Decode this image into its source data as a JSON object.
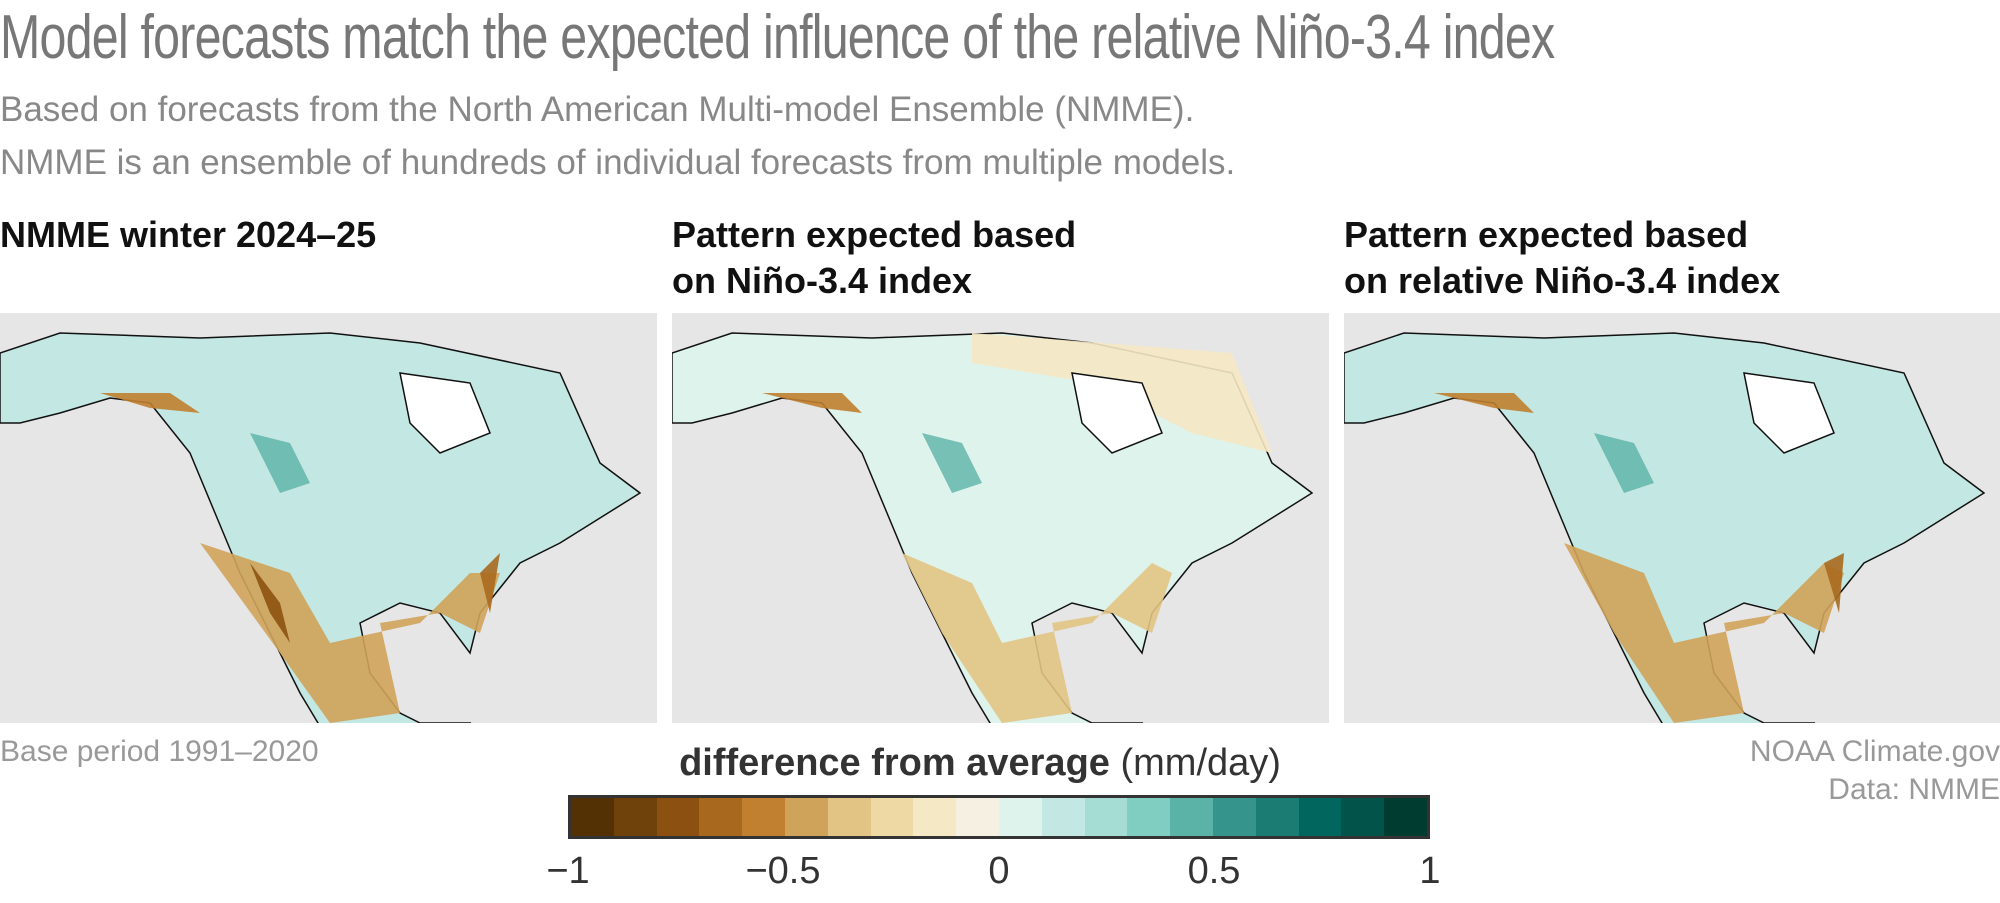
{
  "title": "Model forecasts match the expected influence of the relative Niño-3.4 index",
  "subtitle": [
    "Based on forecasts from the North American Multi-model Ensemble (NMME).",
    "NMME is an ensemble of hundreds of individual forecasts from multiple models."
  ],
  "panels": [
    {
      "title": "NMME winter 2024–25"
    },
    {
      "title": "Pattern expected based\non Niño-3.4 index"
    },
    {
      "title": "Pattern expected based\non relative Niño-3.4 index"
    }
  ],
  "base_period": "Base period 1991–2020",
  "credit": [
    "NOAA Climate.gov",
    "Data: NMME"
  ],
  "chart_data": {
    "type": "heatmap",
    "legend": {
      "title_bold": "difference from average",
      "title_units": "(mm/day)",
      "range": [
        -1,
        1
      ],
      "ticks": [
        "−1",
        "−0.5",
        "0",
        "0.5",
        "1"
      ],
      "colors": [
        "#543005",
        "#6f410b",
        "#8c5110",
        "#a8691e",
        "#c0802f",
        "#d0a35a",
        "#e2c484",
        "#eed8a3",
        "#f5e8c4",
        "#f5f0e1",
        "#def3ec",
        "#c3e7e2",
        "#a5ddd4",
        "#80cdc1",
        "#5bb3a8",
        "#35958c",
        "#1b7c74",
        "#01665e",
        "#02534a",
        "#003c30"
      ]
    }
  }
}
